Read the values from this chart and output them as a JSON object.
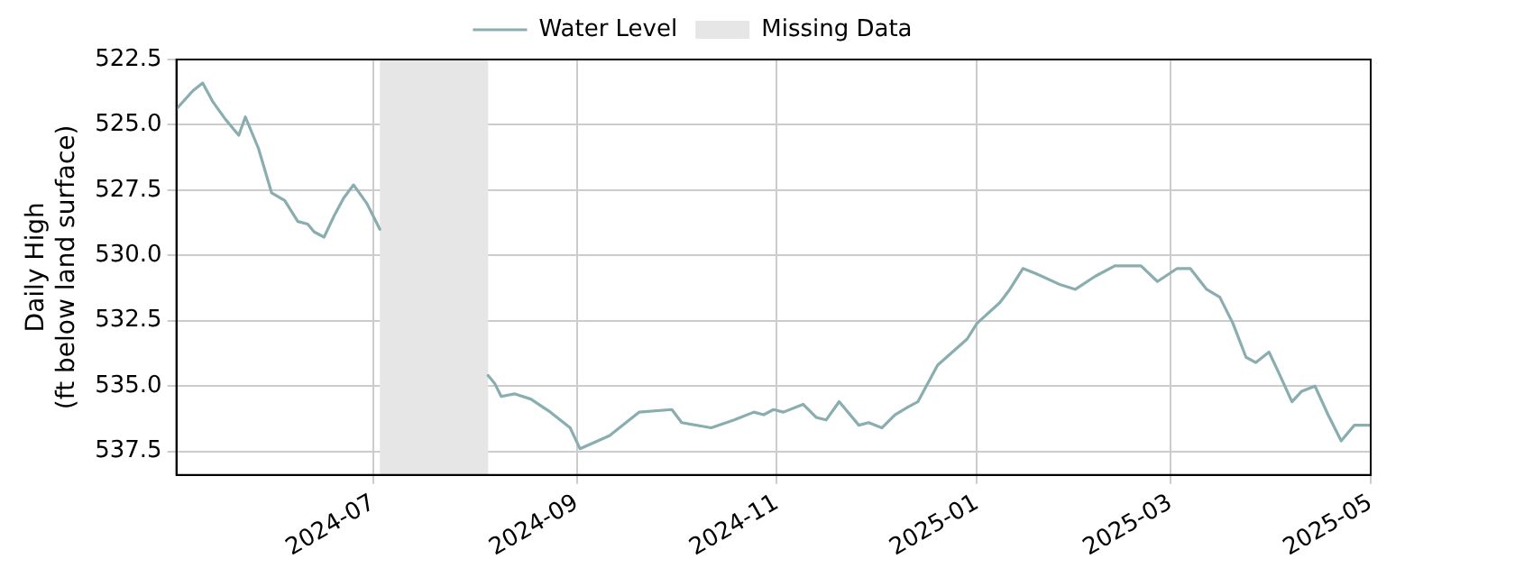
{
  "chart_data": {
    "type": "line",
    "ylabel": "Daily High\n(ft below land surface)",
    "x": [
      "2024-05-02",
      "2024-05-07",
      "2024-05-10",
      "2024-05-13",
      "2024-05-17",
      "2024-05-21",
      "2024-05-23",
      "2024-05-27",
      "2024-05-31",
      "2024-06-04",
      "2024-06-08",
      "2024-06-11",
      "2024-06-13",
      "2024-06-16",
      "2024-06-19",
      "2024-06-22",
      "2024-06-25",
      "2024-06-29",
      "2024-07-03",
      "2024-07-20",
      "2024-08-05",
      "2024-08-07",
      "2024-08-09",
      "2024-08-13",
      "2024-08-18",
      "2024-08-24",
      "2024-08-30",
      "2024-09-02",
      "2024-09-11",
      "2024-09-16",
      "2024-09-20",
      "2024-09-30",
      "2024-10-03",
      "2024-10-12",
      "2024-10-19",
      "2024-10-25",
      "2024-10-28",
      "2024-10-31",
      "2024-11-03",
      "2024-11-09",
      "2024-11-13",
      "2024-11-16",
      "2024-11-20",
      "2024-11-26",
      "2024-11-29",
      "2024-12-03",
      "2024-12-07",
      "2024-12-11",
      "2024-12-14",
      "2024-12-17",
      "2024-12-20",
      "2024-12-29",
      "2025-01-01",
      "2025-01-08",
      "2025-01-11",
      "2025-01-15",
      "2025-01-19",
      "2025-01-26",
      "2025-01-31",
      "2025-02-06",
      "2025-02-12",
      "2025-02-20",
      "2025-02-25",
      "2025-03-03",
      "2025-03-07",
      "2025-03-12",
      "2025-03-16",
      "2025-03-20",
      "2025-03-24",
      "2025-03-27",
      "2025-03-31",
      "2025-04-03",
      "2025-04-07",
      "2025-04-10",
      "2025-04-14",
      "2025-04-18",
      "2025-04-22",
      "2025-04-26",
      "2025-05-01"
    ],
    "series": [
      {
        "name": "Water Level",
        "color": "#8aaeb0",
        "values": [
          524.4,
          523.7,
          523.4,
          524.1,
          524.8,
          525.4,
          524.7,
          525.9,
          527.6,
          527.9,
          528.7,
          528.8,
          529.1,
          529.3,
          528.5,
          527.8,
          527.3,
          528.0,
          529.0,
          null,
          534.6,
          534.9,
          535.4,
          535.3,
          535.5,
          536.0,
          536.6,
          537.4,
          536.9,
          536.4,
          536.0,
          535.9,
          536.4,
          536.6,
          536.3,
          536.0,
          536.1,
          535.9,
          536.0,
          535.7,
          536.2,
          536.3,
          535.6,
          536.5,
          536.4,
          536.6,
          536.1,
          535.8,
          535.6,
          534.9,
          534.2,
          533.2,
          532.6,
          531.8,
          531.3,
          530.5,
          530.7,
          531.1,
          531.3,
          530.8,
          530.4,
          530.4,
          531.0,
          530.5,
          530.5,
          531.3,
          531.6,
          532.6,
          533.9,
          534.1,
          533.7,
          534.5,
          535.6,
          535.2,
          535.0,
          536.1,
          537.1,
          536.5,
          536.5
        ]
      }
    ],
    "bands": [
      {
        "axis": "x",
        "from": "2024-07-03",
        "to": "2024-08-05",
        "label": "Missing Data",
        "color": "#e6e6e6"
      }
    ],
    "xlim": [
      "2024-05-02",
      "2025-05-01"
    ],
    "xticks": [
      "2024-07",
      "2024-09",
      "2024-11",
      "2025-01",
      "2025-03",
      "2025-05"
    ],
    "ylim": [
      538.4,
      522.5
    ],
    "yticks": [
      {
        "value": 522.5,
        "label": "522.5"
      },
      {
        "value": 525,
        "label": "525.0"
      },
      {
        "value": 527.5,
        "label": "527.5"
      },
      {
        "value": 530,
        "label": "530.0"
      },
      {
        "value": 532.5,
        "label": "532.5"
      },
      {
        "value": 535,
        "label": "535.0"
      },
      {
        "value": 537.5,
        "label": "537.5"
      }
    ],
    "grid": true,
    "legend": "top",
    "marker": "none",
    "line_style": "solid"
  }
}
